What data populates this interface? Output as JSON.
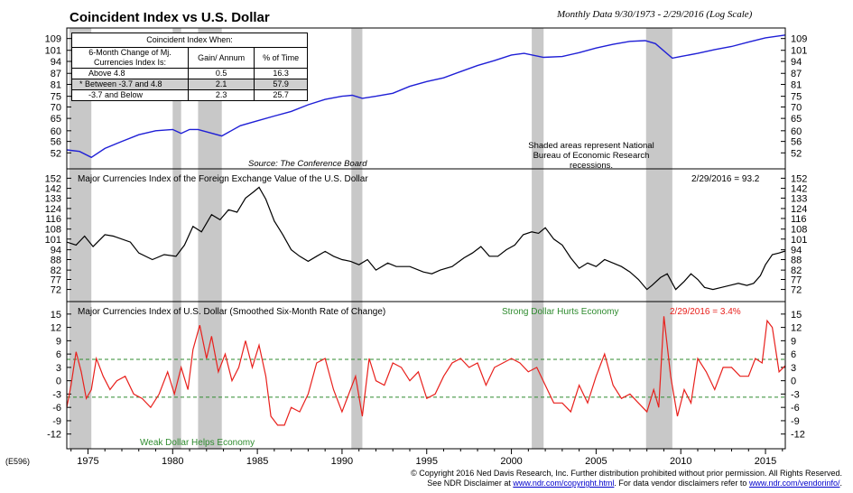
{
  "header": {
    "title": "Coincident Index vs U.S. Dollar",
    "subtitle": "Monthly Data 9/30/1973 - 2/29/2016 (Log Scale)"
  },
  "table": {
    "title": "Coincident Index When:",
    "col1": "6-Month Change of Mj. Currencies Index Is:",
    "col2": "Gain/ Annum",
    "col3": "% of Time",
    "rows": [
      {
        "label": "Above 4.8",
        "gain": "0.5",
        "pct": "16.3",
        "shaded": false
      },
      {
        "label": "* Between -3.7 and 4.8",
        "gain": "2.1",
        "pct": "57.9",
        "shaded": true
      },
      {
        "label": "-3.7 and Below",
        "gain": "2.3",
        "pct": "25.7",
        "shaded": false
      }
    ]
  },
  "annotations": {
    "source": "Source: The Conference Board",
    "shaded_note": "Shaded areas represent National Bureau of Economic Research recessions.",
    "panel2_title": "Major Currencies Index of the Foreign Exchange Value of the U.S. Dollar",
    "panel2_latest": "2/29/2016 = 93.2",
    "panel3_title": "Major Currencies Index of U.S. Dollar (Smoothed Six-Month Rate of Change)",
    "panel3_strong": "Strong Dollar Hurts Economy",
    "panel3_latest": "2/29/2016 = 3.4%",
    "panel3_weak": "Weak Dollar Helps Economy"
  },
  "footer": {
    "code": "(E596)",
    "line1": "© Copyright 2016 Ned Davis Research, Inc.  Further distribution prohibited without prior permission.  All Rights Reserved.",
    "line2_a": "See NDR Disclaimer at ",
    "line2_link1": "www.ndr.com/copyright.html",
    "line2_b": ".  For data vendor disclaimers refer to ",
    "line2_link2": "www.ndr.com/vendorinfo/",
    "line2_c": "."
  },
  "colors": {
    "coincident": "#1f1fd6",
    "dollar": "#000000",
    "roc": "#e8201c",
    "recession": "#c8c8c8",
    "threshold": "#2e8b2e",
    "strong_text": "#2e8b2e",
    "latest_roc_text": "#e8201c"
  },
  "chart_data": {
    "x_range": [
      1973.75,
      2016.17
    ],
    "x_ticks": [
      1975,
      1980,
      1985,
      1990,
      1995,
      2000,
      2005,
      2010,
      2015
    ],
    "recessions": [
      [
        1973.9,
        1975.2
      ],
      [
        1980.0,
        1980.5
      ],
      [
        1981.5,
        1982.9
      ],
      [
        1990.55,
        1991.2
      ],
      [
        2001.2,
        2001.9
      ],
      [
        2007.95,
        2009.5
      ]
    ],
    "panels": [
      {
        "name": "Coincident Index",
        "type": "line",
        "scale": "log",
        "ylim": [
          48,
          114
        ],
        "yticks": [
          52,
          56,
          60,
          65,
          70,
          75,
          81,
          87,
          94,
          101,
          109
        ],
        "x": [
          1973.75,
          1974.5,
          1975.2,
          1976.0,
          1977.0,
          1978.0,
          1979.0,
          1980.0,
          1980.5,
          1981.0,
          1981.5,
          1982.9,
          1984.0,
          1985.0,
          1986.0,
          1987.0,
          1988.0,
          1989.0,
          1990.0,
          1990.6,
          1991.2,
          1992.0,
          1993.0,
          1994.0,
          1995.0,
          1996.0,
          1997.0,
          1998.0,
          1999.0,
          2000.0,
          2000.75,
          2001.9,
          2003.0,
          2004.0,
          2005.0,
          2006.0,
          2007.0,
          2007.9,
          2008.5,
          2009.5,
          2010.0,
          2011.0,
          2012.0,
          2013.0,
          2014.0,
          2015.0,
          2016.17
        ],
        "y": [
          53.0,
          52.5,
          50.5,
          53.5,
          56.0,
          58.5,
          60.0,
          60.5,
          59.0,
          60.5,
          60.5,
          58.0,
          62.0,
          64.0,
          66.0,
          68.0,
          71.0,
          73.5,
          75.0,
          75.5,
          74.0,
          75.0,
          76.5,
          80.0,
          82.5,
          84.5,
          88.0,
          91.5,
          94.5,
          98.0,
          99.0,
          96.5,
          97.0,
          99.5,
          102.5,
          105.0,
          107.0,
          107.5,
          105.5,
          96.0,
          97.0,
          99.0,
          101.5,
          103.5,
          106.5,
          109.5,
          111.5
        ]
      },
      {
        "name": "Major Currencies Index",
        "type": "line",
        "scale": "log",
        "ylim": [
          68,
          158
        ],
        "yticks": [
          72,
          77,
          82,
          88,
          94,
          101,
          108,
          116,
          124,
          133,
          142,
          152
        ],
        "x": [
          1973.75,
          1974.3,
          1974.8,
          1975.3,
          1976.0,
          1976.5,
          1977.5,
          1978.0,
          1978.8,
          1979.5,
          1980.2,
          1980.7,
          1981.2,
          1981.7,
          1982.3,
          1982.8,
          1983.3,
          1983.8,
          1984.3,
          1984.8,
          1985.1,
          1985.5,
          1986.0,
          1986.5,
          1987.0,
          1987.5,
          1988.0,
          1988.5,
          1989.0,
          1989.5,
          1990.0,
          1990.5,
          1991.0,
          1991.5,
          1992.0,
          1992.7,
          1993.2,
          1994.0,
          1994.8,
          1995.3,
          1995.8,
          1996.5,
          1997.2,
          1997.7,
          1998.2,
          1998.7,
          1999.2,
          1999.7,
          2000.2,
          2000.7,
          2001.2,
          2001.6,
          2002.0,
          2002.5,
          2003.0,
          2003.5,
          2004.0,
          2004.5,
          2005.0,
          2005.5,
          2006.0,
          2006.5,
          2007.0,
          2007.5,
          2008.0,
          2008.3,
          2008.8,
          2009.2,
          2009.7,
          2010.2,
          2010.6,
          2011.0,
          2011.4,
          2011.9,
          2012.4,
          2012.9,
          2013.4,
          2013.9,
          2014.3,
          2014.7,
          2015.0,
          2015.4,
          2015.8,
          2016.17
        ],
        "y": [
          99,
          97,
          103,
          96,
          104,
          103,
          99,
          92,
          88,
          91,
          90,
          97,
          110,
          106,
          119,
          115,
          123,
          121,
          133,
          139,
          143,
          132,
          114,
          104,
          94,
          90,
          87,
          90,
          93,
          90,
          88,
          87,
          85,
          88,
          82,
          86,
          84,
          84,
          81,
          80,
          82,
          84,
          89,
          92,
          96,
          90,
          90,
          94,
          97,
          104,
          106,
          105,
          109,
          101,
          97,
          89,
          83,
          86,
          84,
          88,
          86,
          84,
          81,
          77,
          72,
          74,
          78,
          80,
          72,
          76,
          80,
          77,
          73,
          72,
          73,
          74,
          75,
          74,
          75,
          79,
          85,
          91,
          92,
          93.2
        ]
      },
      {
        "name": "Smoothed Six-Month Rate of Change",
        "type": "line",
        "unit": "%",
        "ylim": [
          -14.5,
          17
        ],
        "yticks": [
          -12,
          -9,
          -6,
          -3,
          0,
          3,
          6,
          9,
          12,
          15
        ],
        "thresholds": [
          4.8,
          -3.7
        ],
        "x": [
          1973.75,
          1974.0,
          1974.3,
          1974.6,
          1974.9,
          1975.2,
          1975.5,
          1975.9,
          1976.3,
          1976.7,
          1977.2,
          1977.7,
          1978.2,
          1978.7,
          1979.2,
          1979.7,
          1980.1,
          1980.5,
          1980.9,
          1981.2,
          1981.6,
          1982.0,
          1982.3,
          1982.7,
          1983.1,
          1983.5,
          1983.9,
          1984.3,
          1984.7,
          1985.1,
          1985.5,
          1985.8,
          1986.2,
          1986.6,
          1987.0,
          1987.5,
          1988.0,
          1988.5,
          1989.0,
          1989.5,
          1990.0,
          1990.4,
          1990.8,
          1991.2,
          1991.6,
          1992.0,
          1992.5,
          1993.0,
          1993.5,
          1994.0,
          1994.5,
          1995.0,
          1995.5,
          1996.0,
          1996.5,
          1997.0,
          1997.5,
          1998.0,
          1998.5,
          1999.0,
          1999.5,
          2000.0,
          2000.5,
          2001.0,
          2001.5,
          2002.0,
          2002.5,
          2003.0,
          2003.5,
          2004.0,
          2004.5,
          2005.0,
          2005.5,
          2006.0,
          2006.5,
          2007.0,
          2007.5,
          2008.0,
          2008.4,
          2008.7,
          2009.0,
          2009.4,
          2009.8,
          2010.2,
          2010.6,
          2011.0,
          2011.5,
          2012.0,
          2012.5,
          2013.0,
          2013.5,
          2014.0,
          2014.4,
          2014.8,
          2015.1,
          2015.4,
          2015.8,
          2016.17
        ],
        "y": [
          -6,
          -1,
          6.5,
          2,
          -4,
          -2,
          5,
          1,
          -2,
          0,
          1,
          -3,
          -4,
          -6,
          -3,
          2,
          -3,
          3,
          -2,
          7,
          12.5,
          5,
          10,
          2,
          6,
          0,
          3,
          9,
          3,
          8,
          1,
          -8,
          -10,
          -10,
          -6,
          -7,
          -3,
          4,
          5,
          -2,
          -7,
          -3,
          1,
          -8,
          5,
          0,
          -1,
          4,
          3,
          0,
          2,
          -4,
          -3,
          1,
          4,
          5,
          3,
          4,
          -1,
          3,
          4,
          5,
          4,
          2,
          3,
          -1,
          -5,
          -5,
          -7,
          -1,
          -5,
          1,
          6,
          -1,
          -4,
          -3,
          -5,
          -7,
          -2,
          -6,
          14.5,
          1,
          -8,
          -2,
          -5,
          5,
          2,
          -2,
          3,
          3,
          1,
          1,
          5,
          4,
          13.5,
          12,
          2,
          3.4
        ]
      }
    ]
  }
}
